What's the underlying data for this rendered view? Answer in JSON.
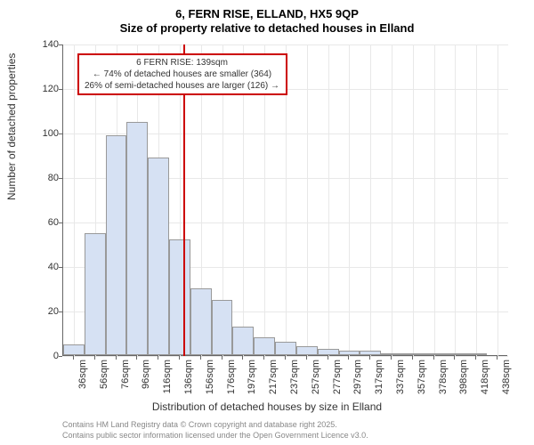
{
  "title_line1": "6, FERN RISE, ELLAND, HX5 9QP",
  "title_line2": "Size of property relative to detached houses in Elland",
  "chart": {
    "type": "histogram",
    "y_label": "Number of detached properties",
    "x_label": "Distribution of detached houses by size in Elland",
    "ylim": [
      0,
      140
    ],
    "ytick_step": 20,
    "y_ticks": [
      0,
      20,
      40,
      60,
      80,
      100,
      120,
      140
    ],
    "x_labels": [
      "36sqm",
      "56sqm",
      "76sqm",
      "96sqm",
      "116sqm",
      "136sqm",
      "156sqm",
      "176sqm",
      "197sqm",
      "217sqm",
      "237sqm",
      "257sqm",
      "277sqm",
      "297sqm",
      "317sqm",
      "337sqm",
      "357sqm",
      "378sqm",
      "398sqm",
      "418sqm",
      "438sqm"
    ],
    "values": [
      5,
      55,
      99,
      105,
      89,
      52,
      30,
      25,
      13,
      8,
      6,
      4,
      3,
      2,
      2,
      1,
      1,
      1,
      1,
      1,
      0
    ],
    "bar_color": "#d6e1f3",
    "bar_border_color": "#999999",
    "grid_color": "#e8e8e8",
    "background_color": "#ffffff",
    "marker_value": 139,
    "marker_x_position_sqm": 139,
    "marker_color": "#cc0000",
    "annotation": {
      "line1": "6 FERN RISE: 139sqm",
      "line2": "← 74% of detached houses are smaller (364)",
      "line3": "26% of semi-detached houses are larger (126) →",
      "border_color": "#cc0000"
    }
  },
  "footnote_line1": "Contains HM Land Registry data © Crown copyright and database right 2025.",
  "footnote_line2": "Contains public sector information licensed under the Open Government Licence v3.0."
}
